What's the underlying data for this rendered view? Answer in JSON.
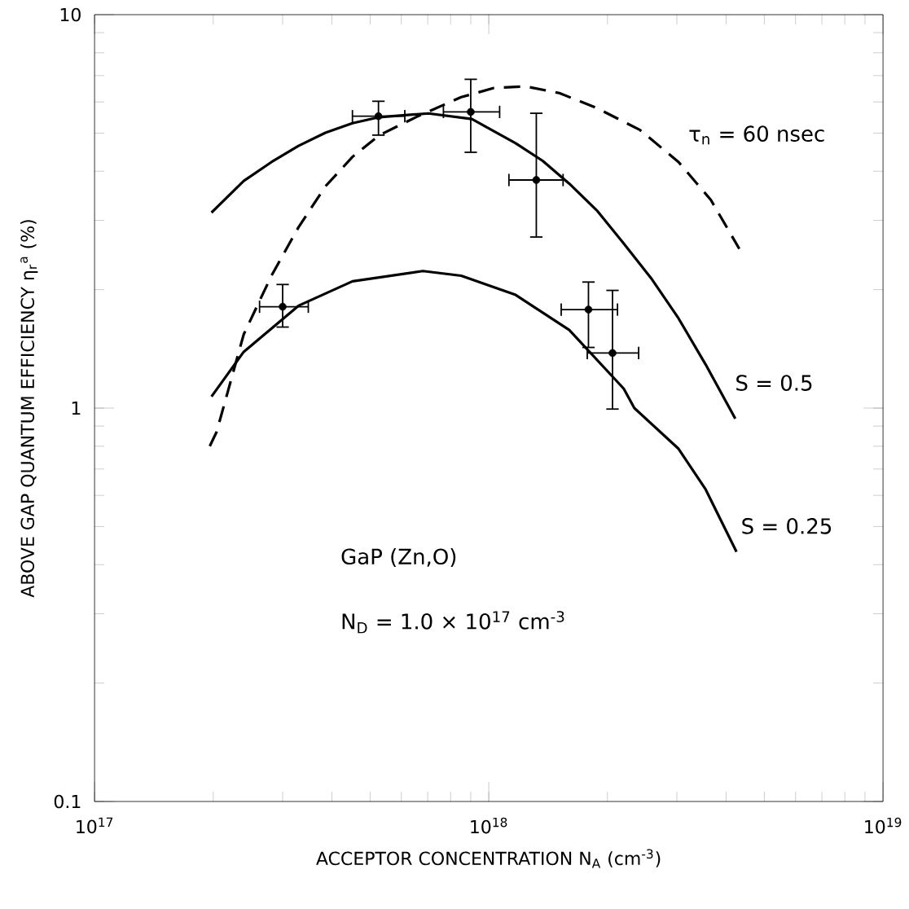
{
  "chart_data": {
    "type": "line",
    "xlabel": "ACCEPTOR CONCENTRATION N$_{A}$ (cm$^{-3}$)",
    "ylabel": "ABOVE GAP QUANTUM EFFICIENCY η$_{r}$$^{a}$ (%)",
    "log": "xy",
    "xlim": [
      1e+17,
      1e+19
    ],
    "ylim": [
      0.1,
      10
    ],
    "xticks": [
      {
        "value": 1e+17,
        "label": "10$^{17}$"
      },
      {
        "value": 1e+18,
        "label": "10$^{18}$"
      },
      {
        "value": 1e+19,
        "label": "10$^{19}$"
      }
    ],
    "yticks": [
      0.1,
      1,
      10
    ],
    "grid": false,
    "annotations": [
      "GaP (Zn,O)",
      "N$_{D}$ = 1.0 × 10$^{17}$ cm$^{-3}$"
    ],
    "series": [
      {
        "type": "scatter",
        "color": "#000000",
        "marker": "circle",
        "x": [
          3e+17,
          5.25e+17,
          9e+17,
          1.32e+18,
          1.79e+18,
          2.06e+18
        ],
        "values": [
          1.81,
          5.52,
          5.66,
          3.8,
          1.78,
          1.38
        ],
        "errors": [
          [
            1.6,
            2.07
          ],
          [
            4.92,
            6.05
          ],
          [
            4.45,
            6.88
          ],
          [
            2.71,
            5.64
          ],
          [
            1.42,
            2.1
          ],
          [
            0.99,
            2.0
          ]
        ],
        "xerrors": [
          [
            2.61e+17,
            3.5e+17
          ],
          [
            4.49e+17,
            6.15e+17
          ],
          [
            7.64e+17,
            1.07e+18
          ],
          [
            1.12e+18,
            1.55e+18
          ],
          [
            1.52e+18,
            2.13e+18
          ],
          [
            1.77e+18,
            2.41e+18
          ]
        ]
      },
      {
        "name": "S = 0.5",
        "color": "#000000",
        "marker": "none",
        "line_style": "solid",
        "x": [
          1.98e+17,
          2.39e+17,
          2.81e+17,
          3.29e+17,
          3.85e+17,
          4.51e+17,
          5.28e+17,
          7.03e+17,
          9.06e+17,
          1.17e+18,
          1.37e+18,
          1.6e+18,
          1.88e+18,
          2.2e+18,
          2.58e+18,
          3.03e+18,
          3.55e+18,
          4.22e+18
        ],
        "values": [
          3.14,
          3.78,
          4.22,
          4.64,
          5.01,
          5.3,
          5.49,
          5.61,
          5.43,
          4.71,
          4.25,
          3.72,
          3.18,
          2.62,
          2.14,
          1.69,
          1.29,
          0.94
        ]
      },
      {
        "name": "S = 0.25",
        "color": "#000000",
        "marker": "none",
        "line_style": "solid",
        "x": [
          1.98e+17,
          2.39e+17,
          3.29e+17,
          4.51e+17,
          6.81e+17,
          8.51e+17,
          1.17e+18,
          1.6e+18,
          2.2e+18,
          2.34e+18,
          3.03e+18,
          3.55e+18,
          4.25e+18
        ],
        "values": [
          1.07,
          1.39,
          1.82,
          2.1,
          2.23,
          2.17,
          1.94,
          1.58,
          1.12,
          1.0,
          0.788,
          0.621,
          0.431
        ]
      },
      {
        "name": "τ$_{n}$ = 60 nsec",
        "color": "#000000",
        "marker": "none",
        "line_style": "dashed",
        "x": [
          1.96e+17,
          2.04e+17,
          2.39e+17,
          2.81e+17,
          3.29e+17,
          3.85e+17,
          4.51e+17,
          5.28e+17,
          6.61e+17,
          8.51e+17,
          1.03e+18,
          1.24e+18,
          1.51e+18,
          1.88e+18,
          2.42e+18,
          3.03e+18,
          3.66e+18,
          4.32e+18
        ],
        "values": [
          0.8,
          0.87,
          1.54,
          2.17,
          2.88,
          3.66,
          4.35,
          4.94,
          5.52,
          6.17,
          6.51,
          6.57,
          6.32,
          5.79,
          5.09,
          4.22,
          3.38,
          2.54
        ]
      }
    ]
  }
}
